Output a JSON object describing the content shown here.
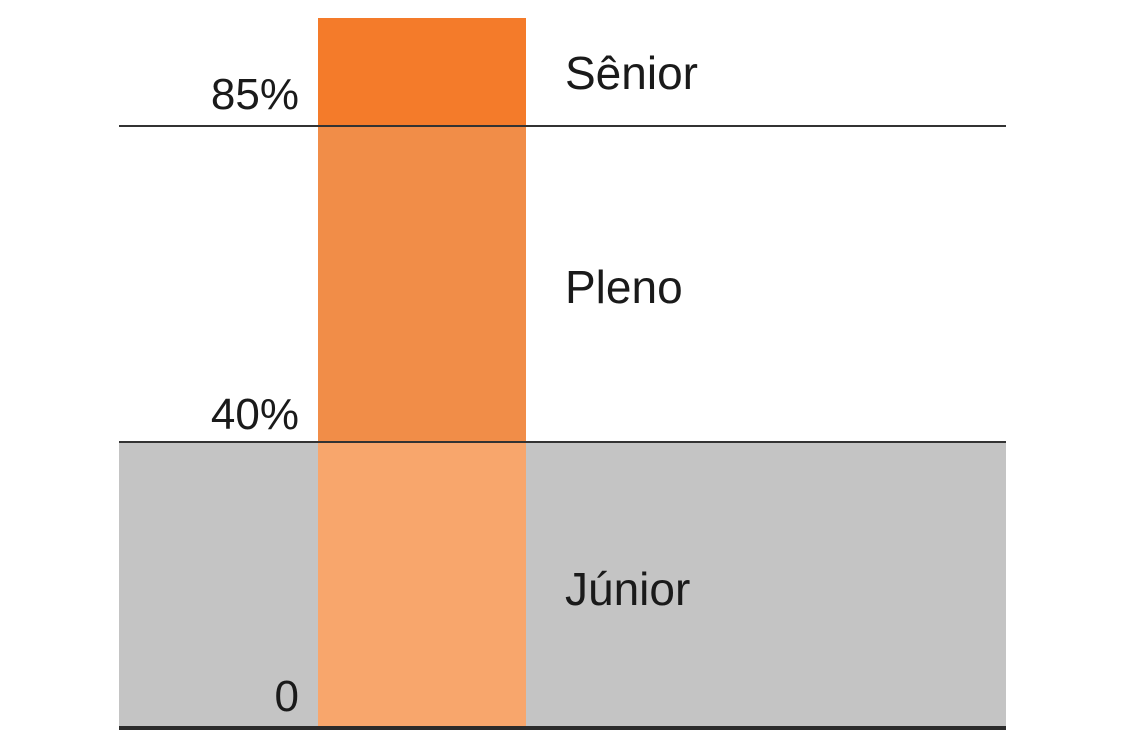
{
  "diagram": {
    "colors": {
      "senior": "#f47b2a",
      "pleno": "#f18d48",
      "junior": "#f8a66c",
      "junior_zone": "#c4c4c4",
      "lines": "#333333"
    },
    "thresholds": [
      {
        "label": "85%",
        "value": 85
      },
      {
        "label": "40%",
        "value": 40
      },
      {
        "label": "0",
        "value": 0
      }
    ],
    "levels": [
      {
        "name": "Sênior"
      },
      {
        "name": "Pleno"
      },
      {
        "name": "Júnior"
      }
    ]
  }
}
